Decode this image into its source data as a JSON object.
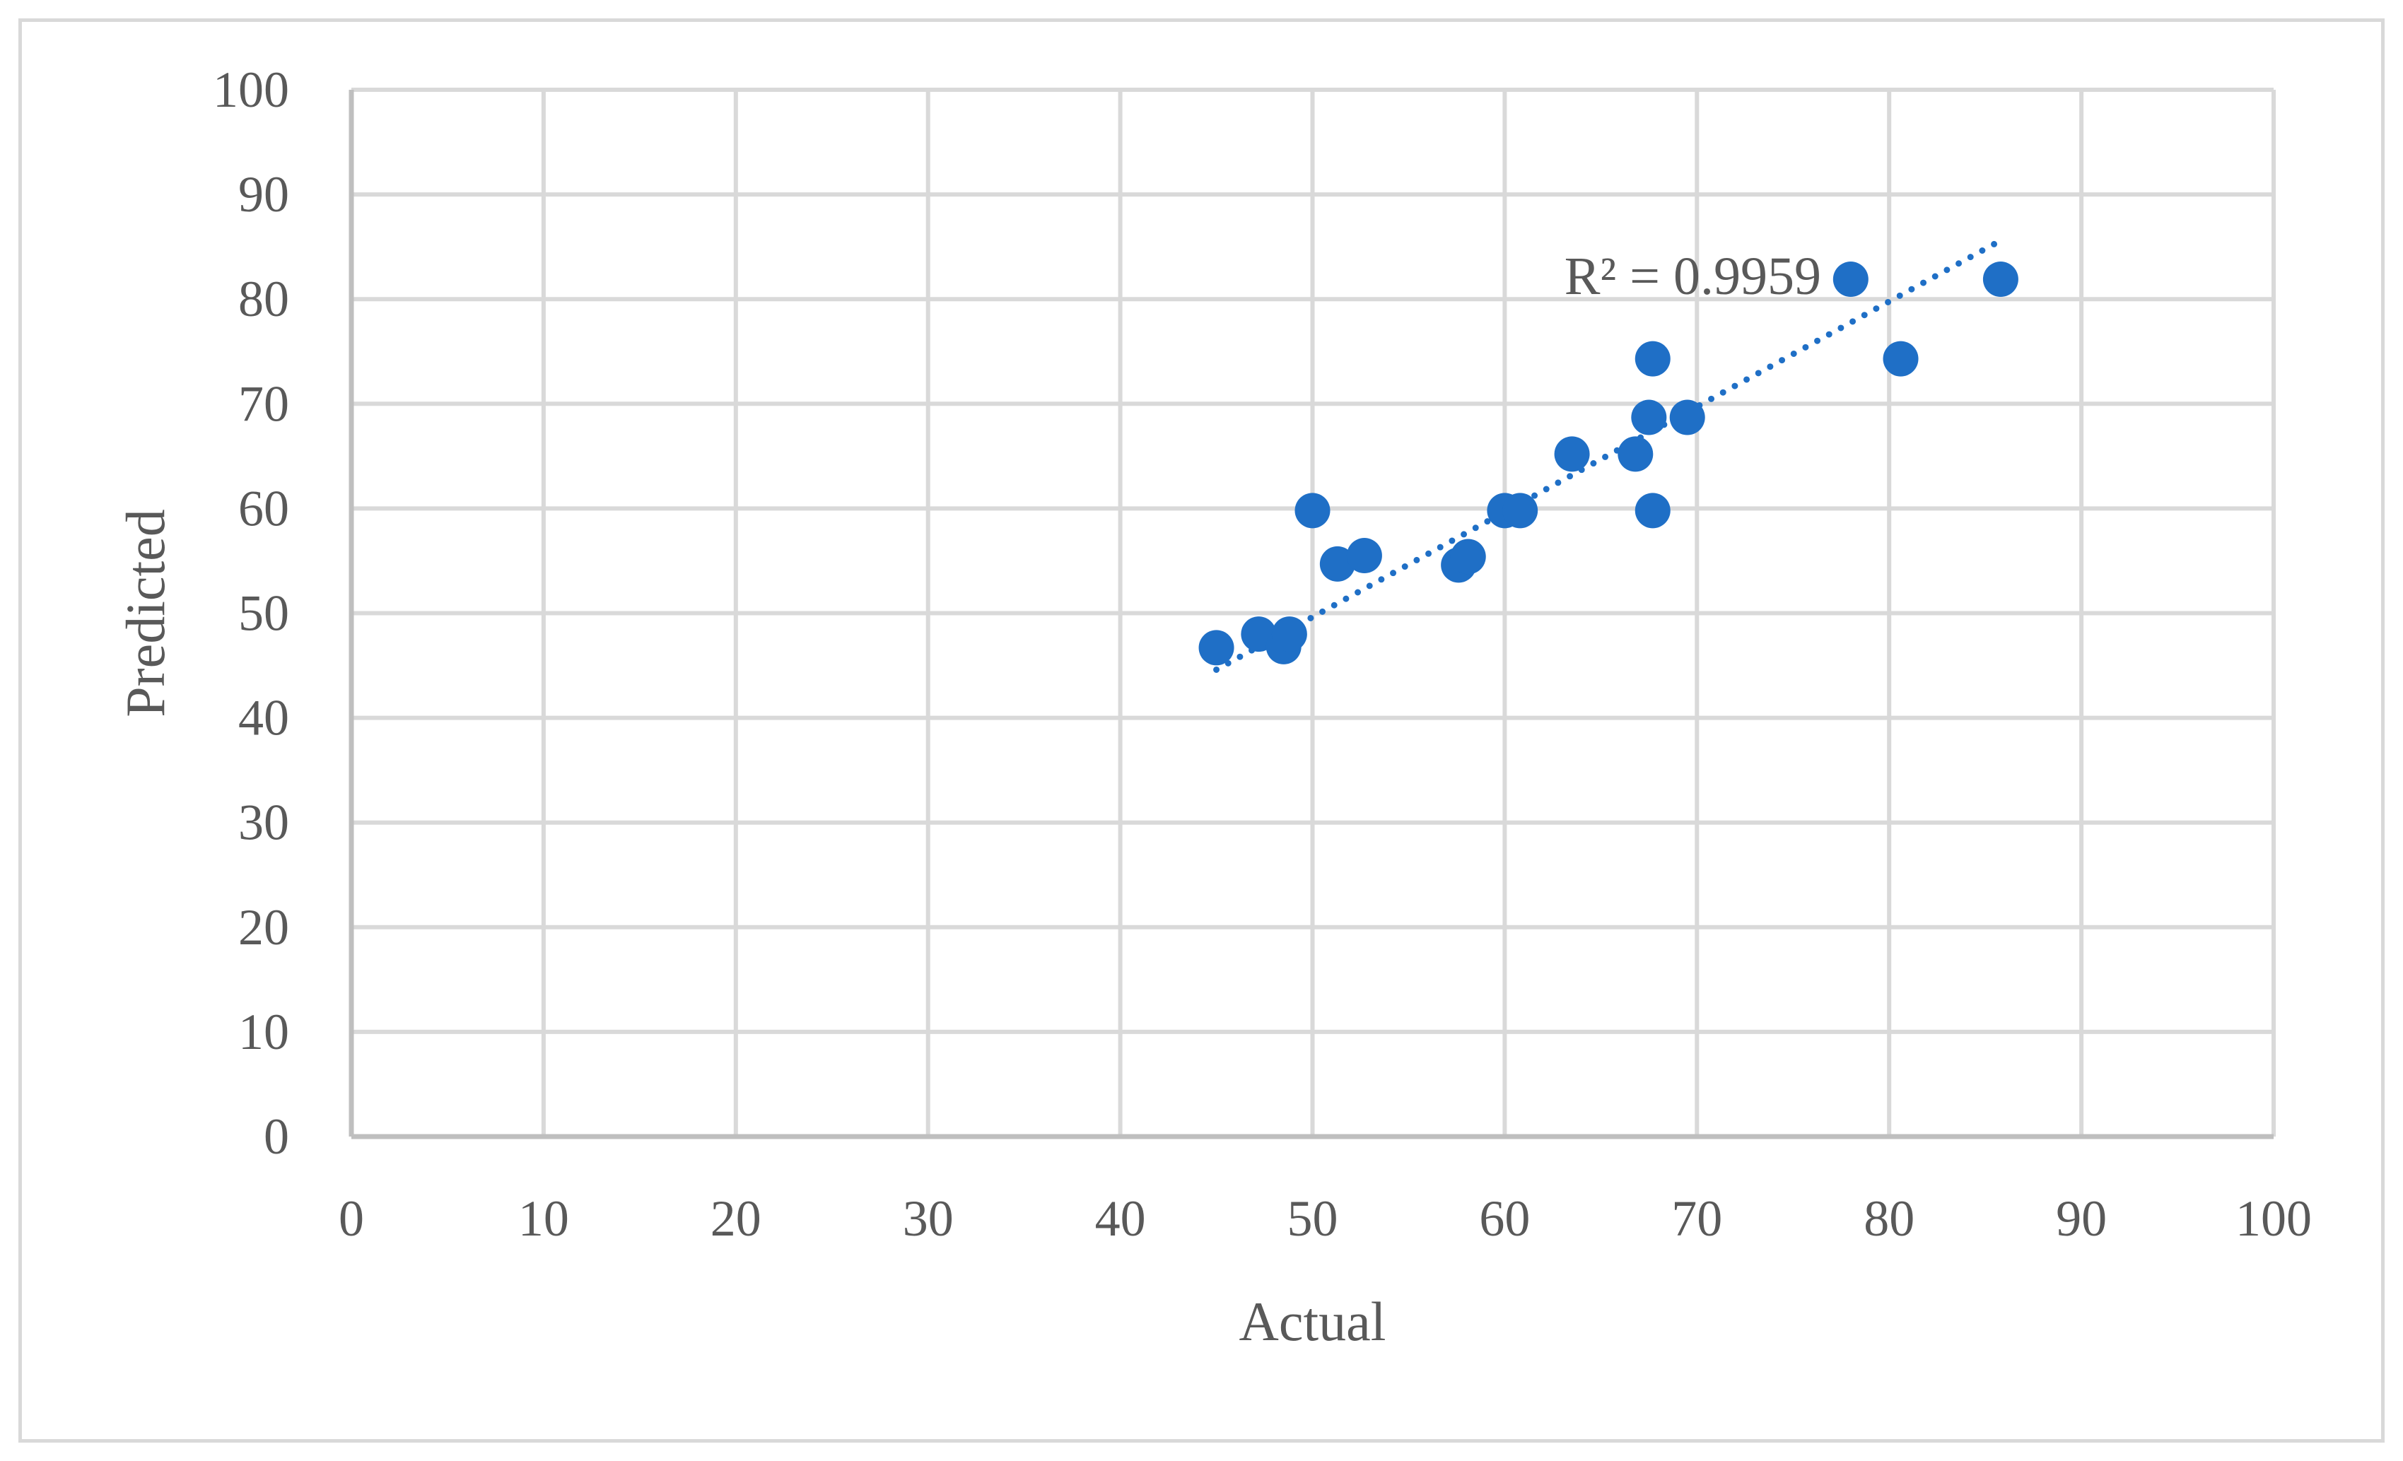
{
  "chart_data": {
    "type": "scatter",
    "title": "",
    "xlabel": "Actual",
    "ylabel": "Predicted",
    "xlim": [
      0,
      100
    ],
    "ylim": [
      0,
      100
    ],
    "xticks": [
      "0",
      "10",
      "20",
      "30",
      "40",
      "50",
      "60",
      "70",
      "80",
      "90",
      "100"
    ],
    "yticks": [
      "0",
      "10",
      "20",
      "30",
      "40",
      "50",
      "60",
      "70",
      "80",
      "90",
      "100"
    ],
    "grid": true,
    "legend": "none",
    "color": "#1f6fc6",
    "series": [
      {
        "points": [
          [
            45.0,
            46.7
          ],
          [
            47.2,
            48.0
          ],
          [
            48.5,
            46.8
          ],
          [
            48.8,
            48.0
          ],
          [
            50.0,
            59.8
          ],
          [
            51.3,
            54.7
          ],
          [
            52.7,
            55.5
          ],
          [
            57.6,
            54.6
          ],
          [
            58.1,
            55.4
          ],
          [
            60.0,
            59.8
          ],
          [
            60.8,
            59.8
          ],
          [
            63.5,
            65.2
          ],
          [
            66.8,
            65.2
          ],
          [
            67.5,
            68.7
          ],
          [
            67.7,
            59.8
          ],
          [
            67.7,
            74.3
          ],
          [
            69.5,
            68.7
          ],
          [
            78.0,
            81.9
          ],
          [
            80.6,
            74.3
          ],
          [
            85.8,
            81.9
          ]
        ]
      }
    ],
    "trendline": {
      "style": "dotted",
      "x_range": [
        45.0,
        85.8
      ],
      "y_range": [
        44.6,
        85.6
      ],
      "label": "R² = 0.9959"
    }
  }
}
